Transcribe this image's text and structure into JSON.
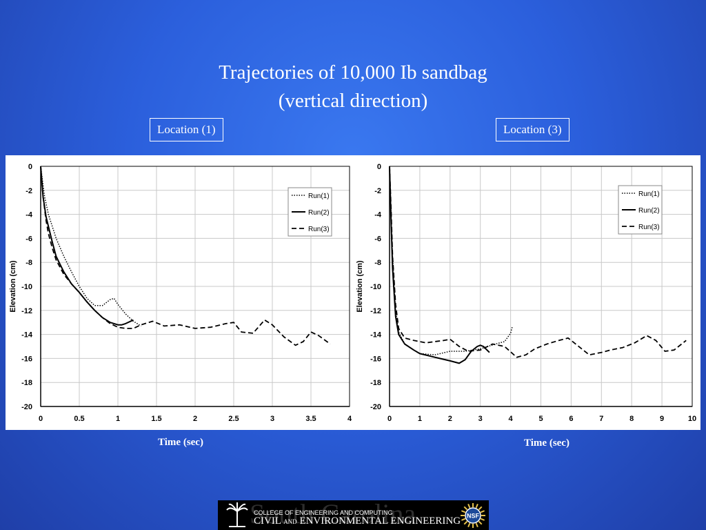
{
  "slide": {
    "title_line1": "Trajectories of 10,000 Ib sandbag",
    "title_line2": "(vertical direction)",
    "location_left": "Location (1)",
    "location_right": "Location (3)",
    "xlabel_left": "Time (sec)",
    "xlabel_right": "Time (sec)",
    "logo": {
      "watermark": "South Carolina",
      "line1": "COLLEGE OF ENGINEERING AND COMPUTING",
      "line2_a": "CIVIL",
      "line2_and": "AND",
      "line2_b": "ENVIRONMENTAL ENGINEERING",
      "nsf": "NSF"
    }
  },
  "chart_data": [
    {
      "type": "line",
      "ylabel": "Elevation  (cm)",
      "xlim": [
        0,
        4
      ],
      "ylim": [
        -20,
        0
      ],
      "xticks": [
        0,
        0.5,
        1,
        1.5,
        2,
        2.5,
        3,
        3.5,
        4
      ],
      "xtick_labels": [
        "0",
        "0.5",
        "1",
        "1.5",
        "2",
        "2.5",
        "3",
        "3.5",
        "4"
      ],
      "yticks": [
        0,
        -2,
        -4,
        -6,
        -8,
        -10,
        -12,
        -14,
        -16,
        -18,
        -20
      ],
      "ytick_labels": [
        "0",
        "-2",
        "-4",
        "-6",
        "-8",
        "-10",
        "-12",
        "-14",
        "-16",
        "-18",
        "-20"
      ],
      "grid": true,
      "legend_position": "top-right",
      "series": [
        {
          "name": "Run(1)",
          "style": "dotted",
          "color": "#000000",
          "x": [
            0,
            0.05,
            0.1,
            0.2,
            0.3,
            0.4,
            0.5,
            0.6,
            0.7,
            0.8,
            0.9,
            0.95,
            1.0,
            1.1,
            1.2,
            1.3
          ],
          "y": [
            0,
            -2.5,
            -4.0,
            -6.0,
            -7.5,
            -8.8,
            -10.0,
            -11.0,
            -11.6,
            -11.6,
            -11.1,
            -11.0,
            -11.5,
            -12.3,
            -12.9,
            -13.3
          ]
        },
        {
          "name": "Run(2)",
          "style": "solid",
          "color": "#000000",
          "x": [
            0,
            0.03,
            0.07,
            0.1,
            0.15,
            0.2,
            0.3,
            0.4,
            0.5,
            0.6,
            0.7,
            0.8,
            0.9,
            1.0,
            1.05,
            1.1,
            1.2
          ],
          "y": [
            0,
            -2.5,
            -4.2,
            -5.0,
            -6.3,
            -7.5,
            -8.8,
            -9.8,
            -10.5,
            -11.3,
            -12.0,
            -12.6,
            -13.0,
            -13.2,
            -13.2,
            -13.1,
            -12.8
          ]
        },
        {
          "name": "Run(3)",
          "style": "dashed",
          "color": "#000000",
          "x": [
            0,
            0.03,
            0.07,
            0.1,
            0.15,
            0.2,
            0.3,
            0.4,
            0.5,
            0.6,
            0.7,
            0.8,
            0.9,
            1.0,
            1.1,
            1.2,
            1.3,
            1.45,
            1.6,
            1.8,
            2.0,
            2.2,
            2.4,
            2.5,
            2.6,
            2.75,
            2.9,
            3.0,
            3.15,
            3.3,
            3.4,
            3.5,
            3.6,
            3.75
          ],
          "y": [
            0,
            -2.5,
            -4.5,
            -5.6,
            -6.8,
            -7.8,
            -9.0,
            -9.8,
            -10.5,
            -11.3,
            -12.0,
            -12.6,
            -13.1,
            -13.4,
            -13.5,
            -13.5,
            -13.2,
            -12.9,
            -13.3,
            -13.2,
            -13.5,
            -13.4,
            -13.1,
            -13.0,
            -13.8,
            -13.9,
            -12.8,
            -13.2,
            -14.2,
            -14.9,
            -14.6,
            -13.8,
            -14.1,
            -14.8
          ]
        }
      ]
    },
    {
      "type": "line",
      "ylabel": "Elevation  (cm)",
      "xlim": [
        0,
        10
      ],
      "ylim": [
        -20,
        0
      ],
      "xticks": [
        0,
        1,
        2,
        3,
        4,
        5,
        6,
        7,
        8,
        9,
        10
      ],
      "xtick_labels": [
        "0",
        "1",
        "2",
        "3",
        "4",
        "5",
        "6",
        "7",
        "8",
        "9",
        "10"
      ],
      "yticks": [
        0,
        -2,
        -4,
        -6,
        -8,
        -10,
        -12,
        -14,
        -16,
        -18,
        -20
      ],
      "ytick_labels": [
        "0",
        "-2",
        "-4",
        "-6",
        "-8",
        "-10",
        "-12",
        "-14",
        "-16",
        "-18",
        "-20"
      ],
      "grid": true,
      "legend_position": "top-right",
      "series": [
        {
          "name": "Run(1)",
          "style": "dotted",
          "color": "#000000",
          "x": [
            0,
            0.05,
            0.1,
            0.2,
            0.3,
            0.5,
            0.8,
            1.0,
            1.5,
            2.0,
            2.5,
            3.0,
            3.5,
            3.8,
            4.0,
            4.05
          ],
          "y": [
            0,
            -4.0,
            -7.5,
            -12.0,
            -13.8,
            -14.8,
            -15.3,
            -15.6,
            -15.7,
            -15.4,
            -15.4,
            -15.2,
            -14.8,
            -14.6,
            -13.9,
            -13.4
          ]
        },
        {
          "name": "Run(2)",
          "style": "solid",
          "color": "#000000",
          "x": [
            0,
            0.05,
            0.1,
            0.2,
            0.3,
            0.5,
            0.8,
            1.0,
            1.5,
            2.0,
            2.3,
            2.5,
            2.7,
            2.9,
            3.0,
            3.1,
            3.3
          ],
          "y": [
            0,
            -4.5,
            -8.5,
            -12.5,
            -14.0,
            -14.8,
            -15.3,
            -15.6,
            -15.9,
            -16.2,
            -16.4,
            -16.1,
            -15.4,
            -15.0,
            -14.9,
            -15.0,
            -15.5
          ]
        },
        {
          "name": "Run(3)",
          "style": "dashed",
          "color": "#000000",
          "x": [
            0,
            0.05,
            0.1,
            0.2,
            0.3,
            0.5,
            0.8,
            1.2,
            1.5,
            1.8,
            2.0,
            2.3,
            2.6,
            3.0,
            3.4,
            3.8,
            4.2,
            4.5,
            4.8,
            5.2,
            5.6,
            5.9,
            6.2,
            6.6,
            7.0,
            7.3,
            7.7,
            8.1,
            8.5,
            8.8,
            9.1,
            9.4,
            9.8
          ],
          "y": [
            0,
            -3.5,
            -7.5,
            -11.5,
            -13.5,
            -14.3,
            -14.5,
            -14.7,
            -14.6,
            -14.5,
            -14.4,
            -15.0,
            -15.4,
            -15.3,
            -14.8,
            -15.0,
            -15.9,
            -15.7,
            -15.2,
            -14.8,
            -14.5,
            -14.3,
            -14.9,
            -15.7,
            -15.5,
            -15.3,
            -15.1,
            -14.7,
            -14.1,
            -14.5,
            -15.4,
            -15.3,
            -14.5
          ]
        }
      ]
    }
  ]
}
